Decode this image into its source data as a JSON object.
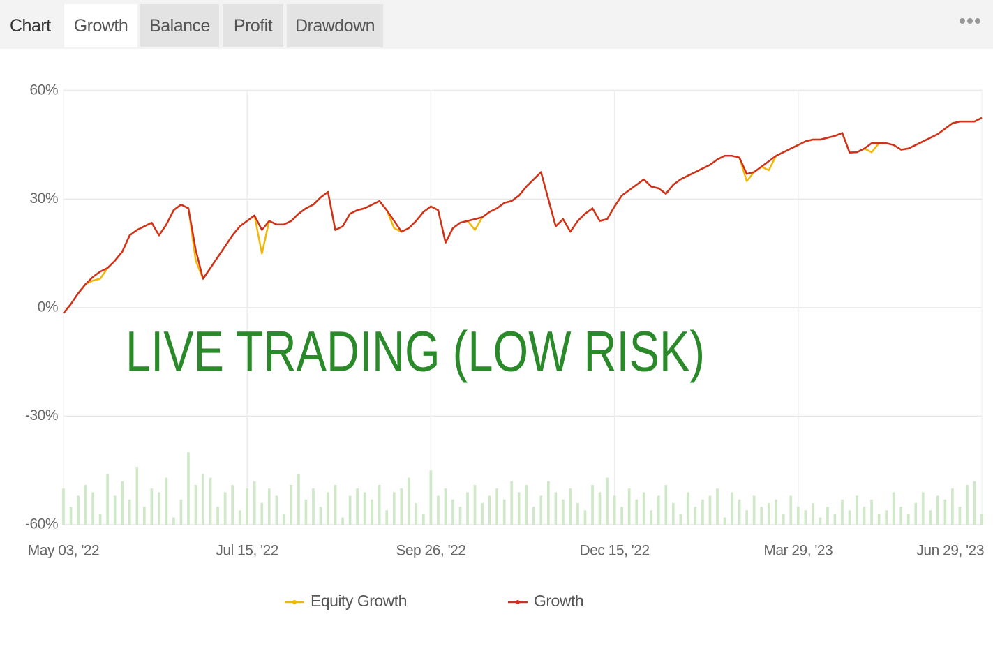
{
  "tab_bar": {
    "label": "Chart",
    "tabs": [
      "Growth",
      "Balance",
      "Profit",
      "Drawdown"
    ]
  },
  "chart_data": {
    "type": "line",
    "annotation": "LIVE TRADING (LOW RISK)",
    "categories": [
      "May 03, '22",
      null,
      null,
      null,
      null,
      null,
      null,
      null,
      null,
      null,
      null,
      null,
      null,
      null,
      null,
      null,
      null,
      null,
      null,
      null,
      null,
      null,
      null,
      null,
      null,
      "Jul 15, '22",
      null,
      null,
      null,
      null,
      null,
      null,
      null,
      null,
      null,
      null,
      null,
      null,
      null,
      null,
      null,
      null,
      null,
      null,
      null,
      null,
      null,
      null,
      null,
      null,
      "Sep 26, '22",
      null,
      null,
      null,
      null,
      null,
      null,
      null,
      null,
      null,
      null,
      null,
      null,
      null,
      null,
      null,
      null,
      null,
      null,
      null,
      null,
      null,
      null,
      null,
      null,
      "Dec 15, '22",
      null,
      null,
      null,
      null,
      null,
      null,
      null,
      null,
      null,
      null,
      null,
      null,
      null,
      null,
      null,
      null,
      null,
      null,
      null,
      null,
      null,
      null,
      null,
      null,
      "Mar 29, '23",
      null,
      null,
      null,
      null,
      null,
      null,
      null,
      null,
      null,
      null,
      null,
      null,
      null,
      null,
      null,
      null,
      null,
      null,
      null,
      null,
      null,
      null,
      null,
      null,
      "Jun 29, '23"
    ],
    "series": [
      {
        "name": "Equity Growth",
        "color": "#f2b705",
        "values": [
          -1.5,
          1,
          4,
          6.5,
          7.5,
          8,
          11,
          13,
          15.5,
          20,
          21.5,
          22.5,
          23.5,
          20,
          23,
          27,
          28.5,
          27.5,
          13,
          8,
          11,
          14,
          17,
          20,
          22.5,
          24,
          25.5,
          15,
          24,
          23,
          23,
          24,
          26,
          27.5,
          28.5,
          30.5,
          32,
          21.5,
          22.5,
          26,
          27,
          27.5,
          28.5,
          29.5,
          27,
          22,
          21,
          22,
          24,
          26.5,
          28,
          27,
          18,
          22,
          23.5,
          24,
          21.5,
          25,
          26.5,
          27.5,
          29,
          29.5,
          31,
          33.5,
          35.5,
          37.5,
          30,
          22.5,
          24.5,
          21,
          24,
          26,
          27.5,
          24,
          24.5,
          28,
          31,
          32.5,
          34,
          35.5,
          33.5,
          33,
          31.5,
          34,
          35.5,
          36.5,
          37.5,
          38.5,
          39.5,
          41,
          42,
          42,
          41.5,
          35,
          37.5,
          39,
          38,
          42,
          43,
          44,
          45,
          46,
          46.5,
          46.5,
          47,
          47.5,
          48.3,
          42.9,
          43,
          44,
          43,
          45.5,
          45.5,
          45,
          43.7,
          44,
          45,
          46,
          47,
          48,
          49.5,
          51,
          51.5,
          51.5,
          51.5,
          52.5
        ]
      },
      {
        "name": "Growth",
        "color": "#d0301e",
        "values": [
          -1.5,
          1,
          4,
          6.5,
          8.5,
          10,
          11,
          13,
          15.5,
          20,
          21.5,
          22.5,
          23.5,
          20,
          23,
          27,
          28.5,
          27.5,
          16,
          8,
          11,
          14,
          17,
          20,
          22.5,
          24,
          25.5,
          21.5,
          24,
          23,
          23,
          24,
          26,
          27.5,
          28.5,
          30.5,
          32,
          21.5,
          22.5,
          26,
          27,
          27.5,
          28.5,
          29.5,
          27,
          24,
          21,
          22,
          24,
          26.5,
          28,
          27,
          18,
          22,
          23.5,
          24,
          24.5,
          25,
          26.5,
          27.5,
          29,
          29.5,
          31,
          33.5,
          35.5,
          37.5,
          30,
          22.5,
          24.5,
          21,
          24,
          26,
          27.5,
          24,
          24.5,
          28,
          31,
          32.5,
          34,
          35.5,
          33.5,
          33,
          31.5,
          34,
          35.5,
          36.5,
          37.5,
          38.5,
          39.5,
          41,
          42,
          42,
          41.5,
          37,
          37.5,
          39,
          40.5,
          42,
          43,
          44,
          45,
          46,
          46.5,
          46.5,
          47,
          47.5,
          48.3,
          42.9,
          43,
          44,
          45.5,
          45.5,
          45.5,
          45,
          43.7,
          44,
          45,
          46,
          47,
          48,
          49.5,
          51,
          51.5,
          51.5,
          51.5,
          52.5
        ]
      }
    ],
    "bars": {
      "color": "#cfe8c8",
      "values": [
        -50,
        -55,
        -52,
        -49,
        -51,
        -57,
        -46,
        -52,
        -48,
        -53,
        -44,
        -55,
        -50,
        -51,
        -47,
        -58,
        -53,
        -40,
        -49,
        -46,
        -47,
        -55,
        -51,
        -49,
        -56,
        -50,
        -48,
        -54,
        -50,
        -52,
        -57,
        -49,
        -46,
        -53,
        -50,
        -55,
        -51,
        -49,
        -58,
        -52,
        -50,
        -51,
        -53,
        -49,
        -56,
        -51,
        -50,
        -47,
        -54,
        -57,
        -45,
        -52,
        -50,
        -53,
        -55,
        -51,
        -49,
        -54,
        -52,
        -50,
        -53,
        -48,
        -51,
        -49,
        -55,
        -52,
        -48,
        -51,
        -53,
        -50,
        -54,
        -56,
        -49,
        -51,
        -47,
        -52,
        -55,
        -50,
        -53,
        -51,
        -56,
        -52,
        -49,
        -54,
        -57,
        -51,
        -55,
        -53,
        -52,
        -50,
        -58,
        -51,
        -53,
        -56,
        -52,
        -55,
        -54,
        -53,
        -57,
        -52,
        -55,
        -56,
        -54,
        -58,
        -55,
        -57,
        -53,
        -56,
        -52,
        -55,
        -53,
        -57,
        -56,
        -51,
        -55,
        -57,
        -54,
        -51,
        -56,
        -52,
        -53,
        -50,
        -55,
        -49,
        -48,
        -57
      ]
    },
    "ylim": [
      -60,
      60
    ],
    "yticks": [
      {
        "value": 60,
        "label": "60%"
      },
      {
        "value": 30,
        "label": "30%"
      },
      {
        "value": 0,
        "label": "0%"
      },
      {
        "value": -30,
        "label": "-30%"
      },
      {
        "value": -60,
        "label": "-60%"
      }
    ],
    "grid": true,
    "legend": "bottom"
  }
}
